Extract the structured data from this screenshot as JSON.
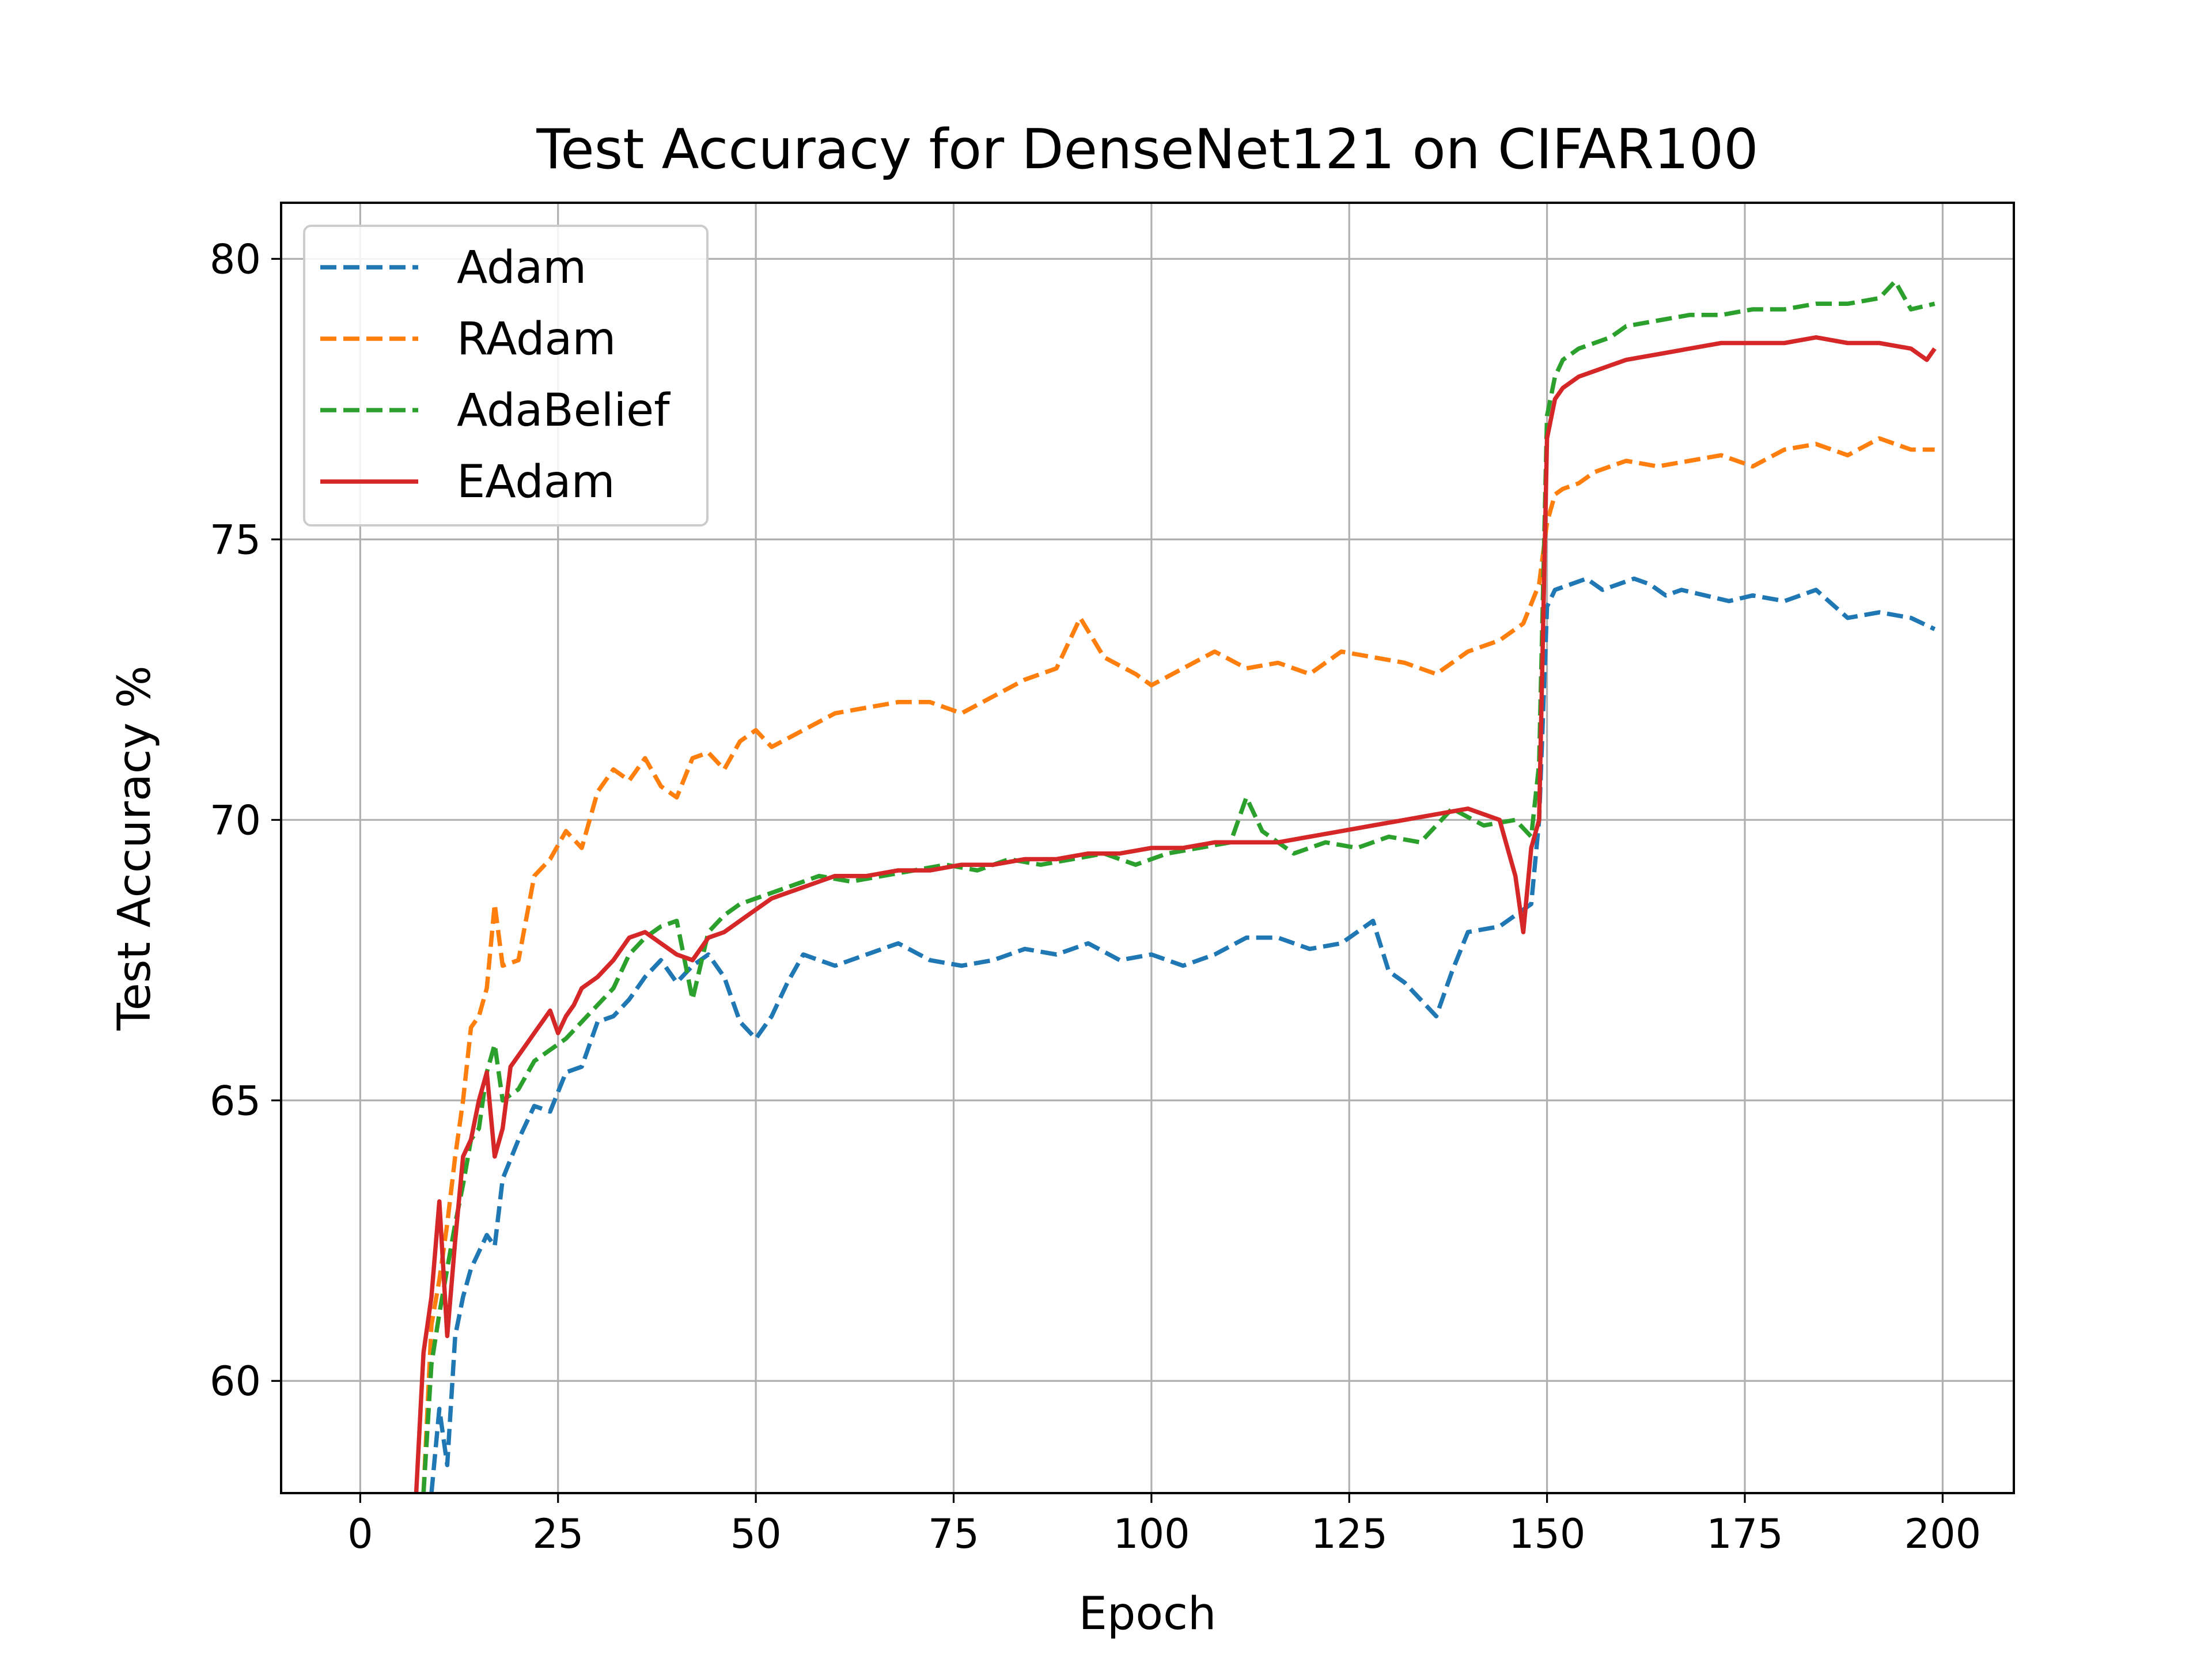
{
  "chart_data": {
    "type": "line",
    "title": "Test Accuracy for DenseNet121 on CIFAR100",
    "xlabel": "Epoch",
    "ylabel": "Test Accuracy %",
    "xlim": [
      -10,
      209
    ],
    "ylim": [
      58,
      81
    ],
    "xticks": [
      0,
      25,
      50,
      75,
      100,
      125,
      150,
      175,
      200
    ],
    "yticks": [
      60,
      65,
      70,
      75,
      80
    ],
    "grid": true,
    "legend_position": "top-left",
    "series": [
      {
        "name": "Adam",
        "color": "#1f77b4",
        "dash": "dashed",
        "x": [
          9,
          10,
          11,
          12,
          13,
          14,
          15,
          16,
          17,
          18,
          20,
          22,
          24,
          26,
          28,
          30,
          32,
          34,
          36,
          38,
          40,
          42,
          44,
          46,
          48,
          50,
          52,
          54,
          56,
          58,
          60,
          64,
          68,
          72,
          76,
          80,
          84,
          88,
          92,
          96,
          100,
          104,
          108,
          112,
          116,
          120,
          124,
          128,
          130,
          132,
          134,
          136,
          138,
          140,
          144,
          148,
          149,
          150,
          151,
          153,
          155,
          157,
          159,
          161,
          163,
          165,
          167,
          170,
          173,
          176,
          180,
          184,
          188,
          192,
          196,
          199
        ],
        "values": [
          58.0,
          59.5,
          58.5,
          60.8,
          61.5,
          62.0,
          62.3,
          62.6,
          62.4,
          63.6,
          64.3,
          64.9,
          64.8,
          65.5,
          65.6,
          66.4,
          66.5,
          66.8,
          67.2,
          67.5,
          67.1,
          67.4,
          67.6,
          67.2,
          66.4,
          66.1,
          66.5,
          67.1,
          67.6,
          67.5,
          67.4,
          67.6,
          67.8,
          67.5,
          67.4,
          67.5,
          67.7,
          67.6,
          67.8,
          67.5,
          67.6,
          67.4,
          67.6,
          67.9,
          67.9,
          67.7,
          67.8,
          68.2,
          67.3,
          67.1,
          66.8,
          66.5,
          67.3,
          68.0,
          68.1,
          68.5,
          70.0,
          73.8,
          74.1,
          74.2,
          74.3,
          74.1,
          74.2,
          74.3,
          74.2,
          74.0,
          74.1,
          74.0,
          73.9,
          74.0,
          73.9,
          74.1,
          73.6,
          73.7,
          73.6,
          73.4
        ]
      },
      {
        "name": "RAdam",
        "color": "#ff7f0e",
        "dash": "dashed",
        "x": [
          8,
          9,
          10,
          11,
          12,
          13,
          14,
          15,
          16,
          17,
          18,
          20,
          22,
          24,
          26,
          28,
          30,
          32,
          34,
          36,
          38,
          40,
          42,
          44,
          46,
          48,
          50,
          52,
          56,
          60,
          64,
          68,
          72,
          76,
          80,
          84,
          88,
          91,
          94,
          98,
          100,
          104,
          108,
          112,
          116,
          120,
          124,
          128,
          132,
          136,
          140,
          144,
          147,
          149,
          150,
          151,
          152,
          154,
          156,
          158,
          160,
          164,
          168,
          172,
          176,
          180,
          184,
          188,
          192,
          196,
          199
        ],
        "values": [
          58.0,
          61.0,
          61.8,
          62.8,
          64.0,
          65.0,
          66.3,
          66.5,
          67.0,
          68.5,
          67.4,
          67.5,
          69.0,
          69.3,
          69.8,
          69.5,
          70.5,
          70.9,
          70.7,
          71.1,
          70.6,
          70.4,
          71.1,
          71.2,
          70.9,
          71.4,
          71.6,
          71.3,
          71.6,
          71.9,
          72.0,
          72.1,
          72.1,
          71.9,
          72.2,
          72.5,
          72.7,
          73.6,
          72.9,
          72.6,
          72.4,
          72.7,
          73.0,
          72.7,
          72.8,
          72.6,
          73.0,
          72.9,
          72.8,
          72.6,
          73.0,
          73.2,
          73.5,
          74.2,
          75.3,
          75.8,
          75.9,
          76.0,
          76.2,
          76.3,
          76.4,
          76.3,
          76.4,
          76.5,
          76.3,
          76.6,
          76.7,
          76.5,
          76.8,
          76.6,
          76.6
        ]
      },
      {
        "name": "AdaBelief",
        "color": "#2ca02c",
        "dash": "dashed",
        "x": [
          8,
          9,
          10,
          11,
          12,
          13,
          14,
          15,
          16,
          17,
          18,
          20,
          22,
          24,
          26,
          28,
          30,
          32,
          34,
          36,
          38,
          40,
          42,
          44,
          46,
          48,
          50,
          54,
          58,
          62,
          66,
          70,
          74,
          78,
          82,
          86,
          90,
          94,
          98,
          102,
          106,
          110,
          112,
          114,
          118,
          122,
          126,
          130,
          134,
          138,
          142,
          146,
          148,
          149,
          150,
          151,
          152,
          154,
          156,
          158,
          160,
          164,
          168,
          172,
          176,
          180,
          184,
          188,
          192,
          194,
          196,
          199
        ],
        "values": [
          58.0,
          60.3,
          61.2,
          62.0,
          62.8,
          63.5,
          64.3,
          64.5,
          65.5,
          66.0,
          65.0,
          65.2,
          65.7,
          65.9,
          66.1,
          66.4,
          66.7,
          67.0,
          67.6,
          67.9,
          68.1,
          68.2,
          66.8,
          68.0,
          68.3,
          68.5,
          68.6,
          68.8,
          69.0,
          68.9,
          69.0,
          69.1,
          69.2,
          69.1,
          69.3,
          69.2,
          69.3,
          69.4,
          69.2,
          69.4,
          69.5,
          69.6,
          70.4,
          69.8,
          69.4,
          69.6,
          69.5,
          69.7,
          69.6,
          70.2,
          69.9,
          70.0,
          69.7,
          71.0,
          77.2,
          77.9,
          78.2,
          78.4,
          78.5,
          78.6,
          78.8,
          78.9,
          79.0,
          79.0,
          79.1,
          79.1,
          79.2,
          79.2,
          79.3,
          79.6,
          79.1,
          79.2
        ]
      },
      {
        "name": "EAdam",
        "color": "#d62728",
        "dash": "solid",
        "x": [
          7,
          8,
          9,
          10,
          11,
          12,
          13,
          14,
          15,
          16,
          17,
          18,
          19,
          20,
          21,
          22,
          23,
          24,
          25,
          26,
          27,
          28,
          30,
          32,
          34,
          36,
          38,
          40,
          42,
          44,
          46,
          48,
          50,
          52,
          54,
          56,
          58,
          60,
          64,
          68,
          72,
          76,
          80,
          84,
          88,
          92,
          96,
          100,
          104,
          108,
          112,
          116,
          120,
          124,
          128,
          132,
          136,
          140,
          144,
          146,
          147,
          148,
          149,
          150,
          151,
          152,
          154,
          156,
          158,
          160,
          164,
          168,
          172,
          176,
          180,
          184,
          188,
          192,
          196,
          198,
          199
        ],
        "values": [
          57.8,
          60.5,
          61.5,
          63.2,
          60.8,
          62.5,
          64.0,
          64.3,
          65.0,
          65.5,
          64.0,
          64.5,
          65.6,
          65.8,
          66.0,
          66.2,
          66.4,
          66.6,
          66.2,
          66.5,
          66.7,
          67.0,
          67.2,
          67.5,
          67.9,
          68.0,
          67.8,
          67.6,
          67.5,
          67.9,
          68.0,
          68.2,
          68.4,
          68.6,
          68.7,
          68.8,
          68.9,
          69.0,
          69.0,
          69.1,
          69.1,
          69.2,
          69.2,
          69.3,
          69.3,
          69.4,
          69.4,
          69.5,
          69.5,
          69.6,
          69.6,
          69.6,
          69.7,
          69.8,
          69.9,
          70.0,
          70.1,
          70.2,
          70.0,
          69.0,
          68.0,
          69.5,
          70.0,
          76.8,
          77.5,
          77.7,
          77.9,
          78.0,
          78.1,
          78.2,
          78.3,
          78.4,
          78.5,
          78.5,
          78.5,
          78.6,
          78.5,
          78.5,
          78.4,
          78.2,
          78.4
        ]
      }
    ]
  }
}
